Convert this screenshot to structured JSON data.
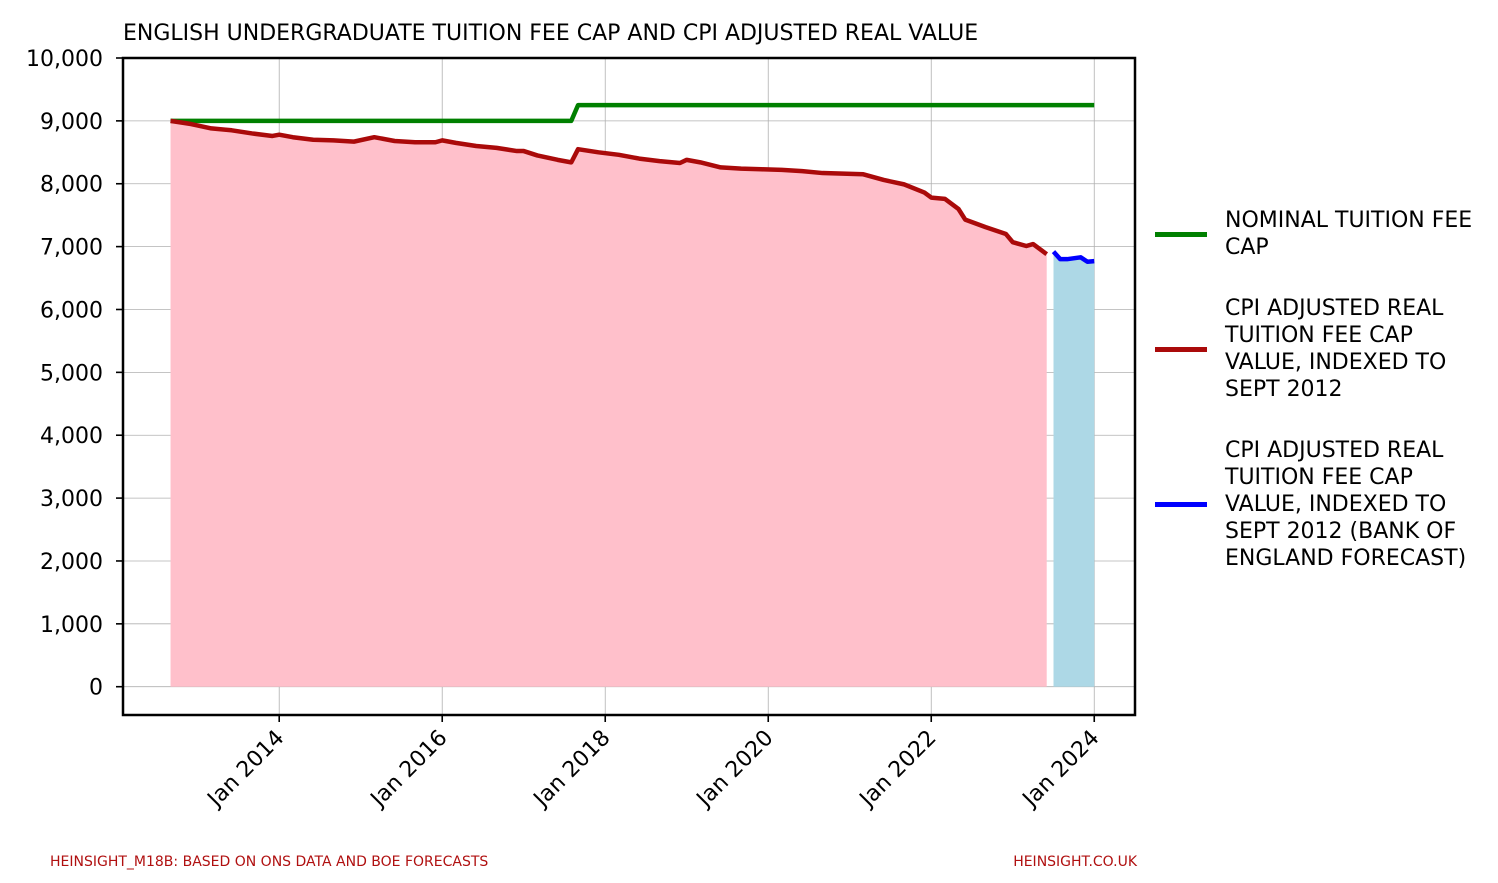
{
  "chart_data": {
    "type": "line",
    "title": "ENGLISH UNDERGRADUATE TUITION FEE CAP AND CPI ADJUSTED REAL VALUE",
    "source": "HEINSIGHT_M18B: BASED ON ONS DATA AND BOE FORECASTS",
    "website": "HEINSIGHT.CO.UK",
    "xlim": [
      "2012-02",
      "2024-07"
    ],
    "xticks": [
      {
        "value": "2014-01",
        "label": "Jan 2014"
      },
      {
        "value": "2016-01",
        "label": "Jan 2016"
      },
      {
        "value": "2018-01",
        "label": "Jan 2018"
      },
      {
        "value": "2020-01",
        "label": "Jan 2020"
      },
      {
        "value": "2022-01",
        "label": "Jan 2022"
      },
      {
        "value": "2024-01",
        "label": "Jan 2024"
      }
    ],
    "ylim": [
      -450,
      10000
    ],
    "yticks": [
      0,
      {
        "value": 1000,
        "label": "1,000"
      },
      {
        "value": 2000,
        "label": "2,000"
      },
      {
        "value": 3000,
        "label": "3,000"
      },
      {
        "value": 4000,
        "label": "4,000"
      },
      {
        "value": 5000,
        "label": "5,000"
      },
      {
        "value": 6000,
        "label": "6,000"
      },
      {
        "value": 7000,
        "label": "7,000"
      },
      {
        "value": 8000,
        "label": "8,000"
      },
      {
        "value": 9000,
        "label": "9,000"
      },
      {
        "value": 10000,
        "label": "10,000"
      }
    ],
    "grid": true,
    "legend_position": "right",
    "series": [
      {
        "name": "NOMINAL TUITION FEE CAP",
        "color": "#008000",
        "fill": null,
        "x": [
          "2012-09",
          "2017-08",
          "2017-09",
          "2024-01"
        ],
        "values": [
          9000,
          9000,
          9250,
          9250
        ]
      },
      {
        "name": "CPI ADJUSTED REAL TUITION FEE CAP VALUE, INDEXED TO SEPT 2012",
        "color": "#aa0a0a",
        "fill": "#ffc0cb",
        "x": [
          "2012-09",
          "2012-12",
          "2013-03",
          "2013-06",
          "2013-09",
          "2013-12",
          "2014-01",
          "2014-03",
          "2014-06",
          "2014-09",
          "2014-12",
          "2015-03",
          "2015-06",
          "2015-09",
          "2015-12",
          "2016-01",
          "2016-03",
          "2016-06",
          "2016-09",
          "2016-12",
          "2017-01",
          "2017-03",
          "2017-06",
          "2017-08",
          "2017-09",
          "2017-12",
          "2018-03",
          "2018-06",
          "2018-09",
          "2018-12",
          "2019-01",
          "2019-03",
          "2019-06",
          "2019-09",
          "2019-12",
          "2020-03",
          "2020-06",
          "2020-09",
          "2020-12",
          "2021-03",
          "2021-06",
          "2021-09",
          "2021-12",
          "2022-01",
          "2022-03",
          "2022-05",
          "2022-06",
          "2022-09",
          "2022-12",
          "2023-01",
          "2023-03",
          "2023-04",
          "2023-06"
        ],
        "values": [
          9000,
          8950,
          8880,
          8850,
          8800,
          8760,
          8780,
          8740,
          8700,
          8690,
          8670,
          8740,
          8680,
          8660,
          8660,
          8690,
          8650,
          8600,
          8570,
          8520,
          8520,
          8450,
          8380,
          8340,
          8550,
          8500,
          8460,
          8400,
          8360,
          8330,
          8380,
          8340,
          8260,
          8240,
          8230,
          8220,
          8200,
          8170,
          8160,
          8150,
          8060,
          7990,
          7860,
          7780,
          7760,
          7600,
          7430,
          7310,
          7200,
          7070,
          7010,
          7040,
          6880
        ]
      },
      {
        "name": "CPI ADJUSTED REAL TUITION FEE CAP VALUE, INDEXED TO SEPT 2012 (BANK OF ENGLAND FORECAST)",
        "color": "#0000ff",
        "fill": "#add8e6",
        "x": [
          "2023-07",
          "2023-08",
          "2023-09",
          "2023-11",
          "2023-12",
          "2024-01"
        ],
        "values": [
          6920,
          6800,
          6800,
          6830,
          6760,
          6770
        ]
      }
    ]
  }
}
